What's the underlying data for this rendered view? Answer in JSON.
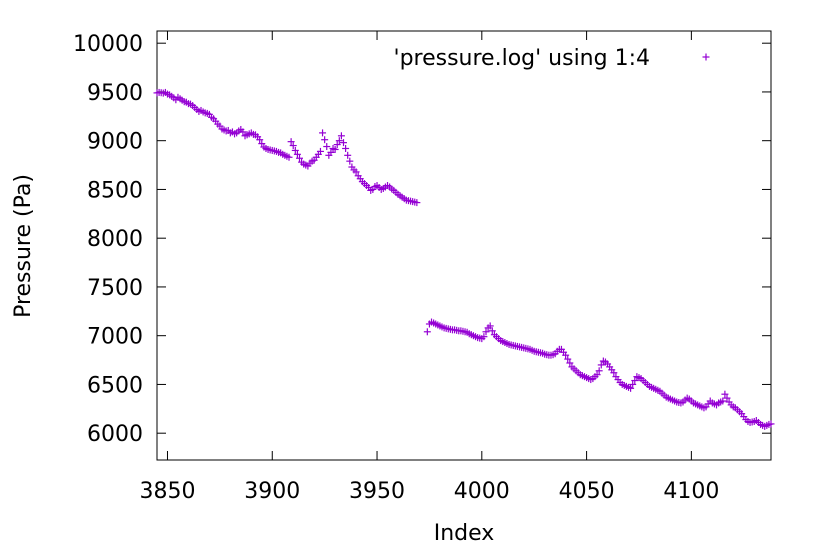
{
  "chart_data": {
    "type": "scatter",
    "xlabel": "Index",
    "ylabel": "Pressure (Pa)",
    "xlim": [
      3845,
      4138
    ],
    "ylim": [
      5725,
      10125
    ],
    "x_ticks": [
      3850,
      3900,
      3950,
      4000,
      4050,
      4100
    ],
    "y_ticks": [
      6000,
      6500,
      7000,
      7500,
      8000,
      8500,
      9000,
      9500,
      10000
    ],
    "grid": false,
    "legend_position": "top-right",
    "series": [
      {
        "name": "'pressure.log' using 1:4",
        "color": "#9400d3",
        "marker": "plus",
        "segments": [
          {
            "x_start": 3845,
            "y": [
              9490,
              9495,
              9492,
              9488,
              9495,
              9478,
              9470,
              9455,
              9440,
              9420,
              9445,
              9430,
              9415,
              9400,
              9395,
              9380,
              9375,
              9360,
              9340,
              9320,
              9300,
              9310,
              9295,
              9285,
              9280,
              9270,
              9240,
              9225,
              9200,
              9170,
              9150,
              9120,
              9110,
              9100,
              9105,
              9080,
              9090,
              9070,
              9080,
              9100,
              9115,
              9090,
              9050,
              9060,
              9070,
              9080,
              9065,
              9060,
              9040,
              9010,
              8970,
              8935,
              8920,
              8910,
              8905,
              8900,
              8895,
              8890,
              8880,
              8875,
              8860,
              8850,
              8840,
              8830,
              8990,
              8950,
              8900,
              8860,
              8820,
              8780,
              8760,
              8750,
              8740,
              8770,
              8790,
              8800,
              8830,
              8860,
              8890,
              9080,
              9010,
              8940,
              8850,
              8880,
              8920,
              8910,
              8960,
              9000,
              9050,
              8980,
              8920,
              8850,
              8790,
              8730,
              8700,
              8680,
              8640,
              8610,
              8580,
              8560,
              8540,
              8520,
              8490,
              8500,
              8530,
              8540,
              8520,
              8500,
              8510,
              8525,
              8540,
              8525,
              8505,
              8490,
              8470,
              8450,
              8435,
              8420,
              8405,
              8390,
              8385,
              8380,
              8375,
              8370,
              8365
            ]
          },
          {
            "x_start": 3974,
            "y": [
              7040,
              7120,
              7140,
              7130,
              7120,
              7110,
              7100,
              7090,
              7080,
              7075,
              7070,
              7065,
              7060,
              7060,
              7055,
              7050,
              7050,
              7045,
              7040,
              7035,
              7020,
              7010,
              7000,
              6990,
              6980,
              6975,
              6970,
              6990,
              7040,
              7080,
              7100,
              7050,
              7010,
              6990,
              6970,
              6950,
              6940,
              6930,
              6920,
              6910,
              6905,
              6900,
              6895,
              6890,
              6885,
              6880,
              6875,
              6870,
              6865,
              6860,
              6850,
              6840,
              6835,
              6830,
              6825,
              6820,
              6810,
              6805,
              6800,
              6800,
              6805,
              6815,
              6840,
              6860,
              6860,
              6830,
              6800,
              6760,
              6720,
              6680,
              6660,
              6640,
              6620,
              6600,
              6590,
              6580,
              6570,
              6560,
              6550,
              6560,
              6580,
              6600,
              6640,
              6700,
              6740,
              6730,
              6710,
              6680,
              6650,
              6620,
              6580,
              6550,
              6520,
              6500,
              6490,
              6480,
              6470,
              6460,
              6500,
              6540,
              6580,
              6570,
              6560,
              6540,
              6520,
              6500,
              6480,
              6470,
              6460,
              6450,
              6440,
              6430,
              6410,
              6390,
              6370,
              6360,
              6350,
              6340,
              6330,
              6320,
              6315,
              6310,
              6320,
              6340,
              6360,
              6350,
              6330,
              6310,
              6300,
              6290,
              6280,
              6270,
              6260,
              6270,
              6300,
              6330,
              6310,
              6300,
              6290,
              6310,
              6320,
              6330,
              6400,
              6360,
              6320,
              6290,
              6270,
              6260,
              6240,
              6220,
              6200,
              6170,
              6140,
              6120,
              6110,
              6115,
              6120,
              6130,
              6110,
              6090,
              6080,
              6070,
              6080,
              6090,
              6095,
              6100,
              6105
            ]
          }
        ]
      }
    ]
  }
}
